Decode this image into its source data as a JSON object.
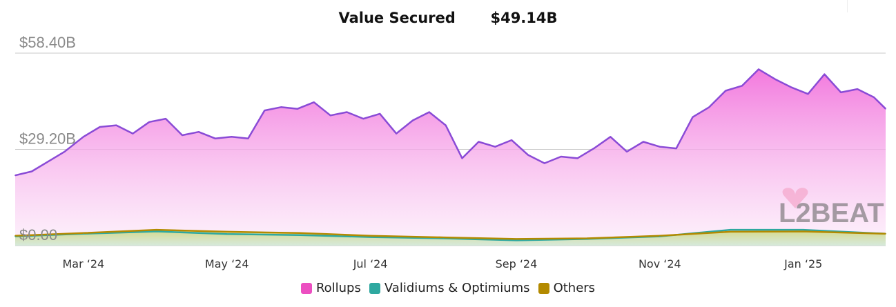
{
  "header": {
    "title": "Value Secured",
    "value": "$49.14B"
  },
  "legend": [
    {
      "label": "Rollups",
      "color": "#ec4fc1"
    },
    {
      "label": "Validiums & Optimiums",
      "color": "#2ea8a0"
    },
    {
      "label": "Others",
      "color": "#b38a00"
    }
  ],
  "watermark": "L2BEAT",
  "chart_data": {
    "type": "area",
    "ylim": [
      0,
      58.4
    ],
    "y_ticks": [
      "$58.40B",
      "$29.20B",
      "$0.00"
    ],
    "y_tick_values": [
      58.4,
      29.2,
      0
    ],
    "x_tick_labels": [
      "Mar ‘24",
      "May ‘24",
      "Jul ‘24",
      "Sep ‘24",
      "Nov ‘24",
      "Jan ‘25"
    ],
    "x_tick_dates": [
      "2024-03-01",
      "2024-05-01",
      "2024-07-01",
      "2024-09-01",
      "2024-11-01",
      "2025-01-01"
    ],
    "x_range": [
      "2024-02-01",
      "2025-02-05"
    ],
    "series": [
      {
        "name": "Rollups",
        "color": "#ec4fc1",
        "line_color": "#8a4bd6",
        "x": [
          "2024-02-01",
          "2024-02-08",
          "2024-02-15",
          "2024-02-22",
          "2024-03-01",
          "2024-03-08",
          "2024-03-15",
          "2024-03-22",
          "2024-03-29",
          "2024-04-05",
          "2024-04-12",
          "2024-04-19",
          "2024-04-26",
          "2024-05-03",
          "2024-05-10",
          "2024-05-17",
          "2024-05-24",
          "2024-05-31",
          "2024-06-07",
          "2024-06-14",
          "2024-06-21",
          "2024-06-28",
          "2024-07-05",
          "2024-07-12",
          "2024-07-19",
          "2024-07-26",
          "2024-08-02",
          "2024-08-09",
          "2024-08-16",
          "2024-08-23",
          "2024-08-30",
          "2024-09-06",
          "2024-09-13",
          "2024-09-20",
          "2024-09-27",
          "2024-10-04",
          "2024-10-11",
          "2024-10-18",
          "2024-10-25",
          "2024-11-01",
          "2024-11-08",
          "2024-11-15",
          "2024-11-22",
          "2024-11-29",
          "2024-12-06",
          "2024-12-13",
          "2024-12-20",
          "2024-12-27",
          "2025-01-03",
          "2025-01-10",
          "2025-01-17",
          "2025-01-24",
          "2025-01-31",
          "2025-02-05"
        ],
        "values": [
          21.3,
          22.5,
          25.5,
          28.5,
          33.0,
          36.0,
          36.5,
          34.0,
          37.5,
          38.5,
          33.5,
          34.5,
          32.5,
          33.0,
          32.5,
          41.0,
          42.0,
          41.5,
          43.5,
          39.5,
          40.5,
          38.5,
          40.0,
          34.0,
          38.0,
          40.5,
          36.5,
          26.5,
          31.5,
          30.0,
          32.0,
          27.5,
          25.0,
          27.0,
          26.5,
          29.5,
          33.0,
          28.5,
          31.5,
          30.0,
          29.5,
          39.0,
          42.0,
          47.0,
          48.5,
          53.5,
          50.5,
          48.0,
          46.0,
          52.0,
          46.5,
          47.5,
          45.0,
          41.5
        ]
      },
      {
        "name": "Validiums & Optimiums",
        "color": "#2ea8a0",
        "x": [
          "2024-02-01",
          "2024-03-01",
          "2024-04-01",
          "2024-05-01",
          "2024-06-01",
          "2024-07-01",
          "2024-08-01",
          "2024-09-01",
          "2024-10-01",
          "2024-11-01",
          "2024-12-01",
          "2025-01-01",
          "2025-02-05"
        ],
        "values": [
          2.8,
          3.6,
          4.3,
          3.5,
          3.2,
          2.6,
          2.2,
          1.6,
          2.0,
          2.8,
          4.8,
          4.8,
          3.6
        ]
      },
      {
        "name": "Others",
        "color": "#b38a00",
        "x": [
          "2024-02-01",
          "2024-03-01",
          "2024-04-01",
          "2024-05-01",
          "2024-06-01",
          "2024-07-01",
          "2024-08-01",
          "2024-09-01",
          "2024-10-01",
          "2024-11-01",
          "2024-12-01",
          "2025-01-01",
          "2025-02-05"
        ],
        "values": [
          3.0,
          3.8,
          4.8,
          4.2,
          3.8,
          3.0,
          2.5,
          2.0,
          2.2,
          3.0,
          4.2,
          4.3,
          3.6
        ]
      }
    ]
  }
}
